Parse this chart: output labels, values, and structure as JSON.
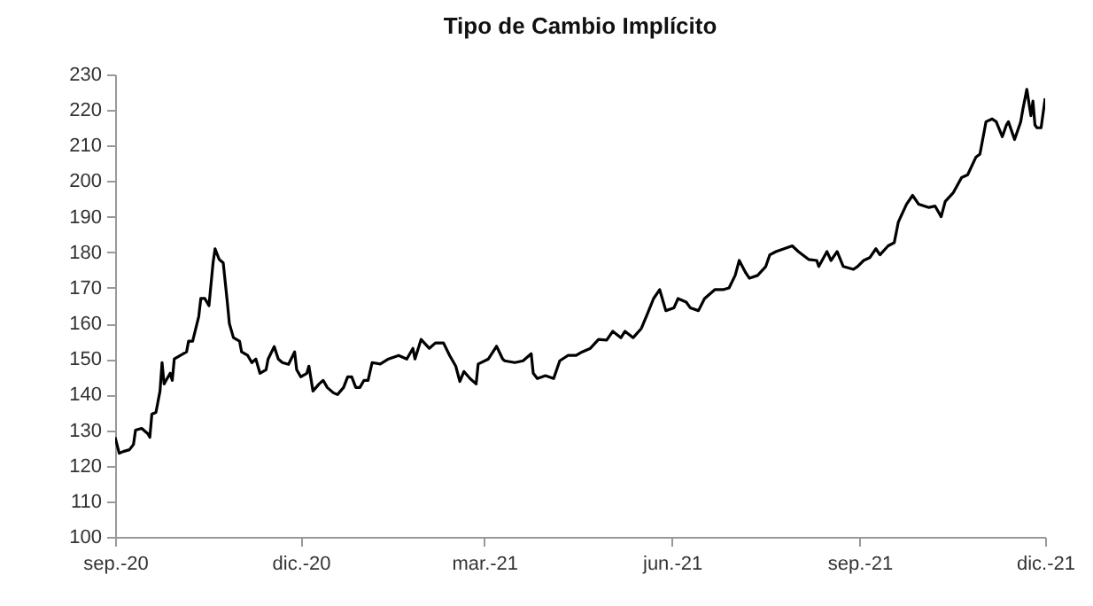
{
  "chart_data": {
    "type": "line",
    "title": "Tipo de Cambio Implícito",
    "x": [
      "2020-09-01",
      "2020-09-03",
      "2020-09-05",
      "2020-09-08",
      "2020-09-10",
      "2020-09-11",
      "2020-09-14",
      "2020-09-17",
      "2020-09-18",
      "2020-09-19",
      "2020-09-21",
      "2020-09-23",
      "2020-09-24",
      "2020-09-25",
      "2020-09-26",
      "2020-09-28",
      "2020-09-29",
      "2020-09-30",
      "2020-10-03",
      "2020-10-06",
      "2020-10-07",
      "2020-10-09",
      "2020-10-12",
      "2020-10-13",
      "2020-10-15",
      "2020-10-17",
      "2020-10-19",
      "2020-10-20",
      "2020-10-22",
      "2020-10-24",
      "2020-10-26",
      "2020-10-27",
      "2020-10-29",
      "2020-11-01",
      "2020-11-02",
      "2020-11-05",
      "2020-11-07",
      "2020-11-09",
      "2020-11-11",
      "2020-11-14",
      "2020-11-15",
      "2020-11-18",
      "2020-11-20",
      "2020-11-22",
      "2020-11-25",
      "2020-11-28",
      "2020-11-29",
      "2020-12-01",
      "2020-12-04",
      "2020-12-05",
      "2020-12-07",
      "2020-12-10",
      "2020-12-12",
      "2020-12-14",
      "2020-12-17",
      "2020-12-19",
      "2020-12-22",
      "2020-12-24",
      "2020-12-26",
      "2020-12-28",
      "2020-12-30",
      "2021-01-01",
      "2021-01-03",
      "2021-01-05",
      "2021-01-09",
      "2021-01-13",
      "2021-01-18",
      "2021-01-22",
      "2021-01-25",
      "2021-01-26",
      "2021-01-29",
      "2021-02-02",
      "2021-02-05",
      "2021-02-09",
      "2021-02-12",
      "2021-02-15",
      "2021-02-17",
      "2021-02-19",
      "2021-02-22",
      "2021-02-25",
      "2021-02-26",
      "2021-03-03",
      "2021-03-07",
      "2021-03-10",
      "2021-03-11",
      "2021-03-16",
      "2021-03-20",
      "2021-03-24",
      "2021-03-25",
      "2021-03-27",
      "2021-03-31",
      "2021-04-04",
      "2021-04-07",
      "2021-04-11",
      "2021-04-15",
      "2021-04-18",
      "2021-04-22",
      "2021-04-26",
      "2021-04-30",
      "2021-05-03",
      "2021-05-07",
      "2021-05-09",
      "2021-05-13",
      "2021-05-17",
      "2021-05-20",
      "2021-05-23",
      "2021-05-26",
      "2021-05-29",
      "2021-06-02",
      "2021-06-04",
      "2021-06-08",
      "2021-06-10",
      "2021-06-14",
      "2021-06-17",
      "2021-06-22",
      "2021-06-26",
      "2021-06-29",
      "2021-07-02",
      "2021-07-04",
      "2021-07-07",
      "2021-07-09",
      "2021-07-13",
      "2021-07-17",
      "2021-07-19",
      "2021-07-22",
      "2021-07-26",
      "2021-07-30",
      "2021-08-02",
      "2021-08-07",
      "2021-08-11",
      "2021-08-12",
      "2021-08-16",
      "2021-08-18",
      "2021-08-21",
      "2021-08-24",
      "2021-08-29",
      "2021-08-31",
      "2021-09-03",
      "2021-09-06",
      "2021-09-09",
      "2021-09-11",
      "2021-09-15",
      "2021-09-18",
      "2021-09-20",
      "2021-09-24",
      "2021-09-27",
      "2021-09-30",
      "2021-10-05",
      "2021-10-08",
      "2021-10-11",
      "2021-10-13",
      "2021-10-17",
      "2021-10-21",
      "2021-10-24",
      "2021-10-28",
      "2021-10-30",
      "2021-11-02",
      "2021-11-05",
      "2021-11-07",
      "2021-11-10",
      "2021-11-12",
      "2021-11-13",
      "2021-11-16",
      "2021-11-19",
      "2021-11-20",
      "2021-11-22",
      "2021-11-24",
      "2021-11-25",
      "2021-11-26",
      "2021-11-27",
      "2021-11-29",
      "2021-12-01"
    ],
    "series": [
      {
        "color": "#000000",
        "values": [
          128,
          123.5,
          124,
          124.5,
          126,
          130,
          130.5,
          129,
          128,
          134.5,
          135,
          141,
          149,
          143,
          144,
          146,
          144,
          150,
          151,
          152,
          155,
          155,
          162,
          167,
          167,
          165,
          177,
          181,
          178,
          177,
          166,
          160,
          156,
          155,
          152,
          151,
          149,
          150,
          146,
          147,
          150,
          153.5,
          150,
          149,
          148.5,
          152,
          147,
          145,
          146,
          148,
          141,
          143,
          144,
          142,
          140.5,
          140,
          142,
          145,
          145,
          142,
          142,
          144,
          144,
          149,
          148.6,
          150,
          151,
          150,
          153,
          150,
          155.5,
          153,
          154.5,
          154.5,
          151,
          148,
          143.7,
          146.5,
          144.5,
          143,
          148.6,
          150,
          153.6,
          150,
          149.5,
          149,
          149.5,
          151.5,
          146,
          144.5,
          145.3,
          144.5,
          149.5,
          151,
          151,
          152,
          153,
          155.5,
          155.3,
          157.8,
          156,
          157.8,
          156,
          158.6,
          162.7,
          167,
          169.5,
          163.6,
          164.4,
          167,
          166,
          164.4,
          163.6,
          167,
          169.5,
          169.5,
          170,
          173.5,
          177.7,
          174.4,
          172.7,
          173.5,
          176,
          179.3,
          180.2,
          181,
          181.8,
          180.2,
          178,
          177.7,
          176,
          180.2,
          177.7,
          180.2,
          176,
          175.2,
          176,
          177.7,
          178.5,
          181,
          179.3,
          181.8,
          182.7,
          188.5,
          193.5,
          196,
          193.5,
          192.6,
          193,
          190,
          194.3,
          196.8,
          201,
          201.8,
          206.7,
          207.6,
          216.7,
          217.5,
          216.7,
          212.5,
          215.8,
          216.7,
          211.7,
          216.7,
          220,
          225.8,
          218.4,
          222.5,
          215.8,
          215,
          215,
          223.3
        ]
      }
    ],
    "xlim": [
      "2020-09-01",
      "2021-12-01"
    ],
    "xticks": [
      {
        "value": "2020-09-01",
        "label": "sep.-20"
      },
      {
        "value": "2020-12-01",
        "label": "dic.-20"
      },
      {
        "value": "2021-03-01",
        "label": "mar.-21"
      },
      {
        "value": "2021-06-01",
        "label": "jun.-21"
      },
      {
        "value": "2021-09-01",
        "label": "sep.-21"
      },
      {
        "value": "2021-12-01",
        "label": "dic.-21"
      }
    ],
    "ylim": [
      100,
      230
    ],
    "yticks": [
      100,
      110,
      120,
      130,
      140,
      150,
      160,
      170,
      180,
      190,
      200,
      210,
      220,
      230
    ],
    "grid": false
  }
}
